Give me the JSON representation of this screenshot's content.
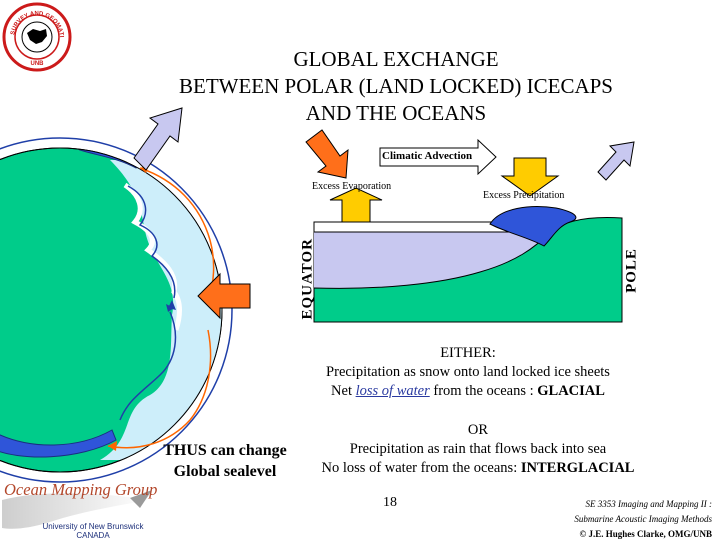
{
  "logo": {
    "ring_text": "SURVEY AND GEOMATICS ENGINEERING",
    "center_text": "UNB"
  },
  "title": {
    "line1": "GLOBAL EXCHANGE",
    "line2": "BETWEEN POLAR (LAND LOCKED) ICECAPS",
    "line3": "AND THE OCEANS"
  },
  "diagram": {
    "climatic_advection": "Climatic Advection",
    "excess_evaporation": "Excess Evaporation",
    "excess_precipitation": "Excess Precipitation",
    "equator": "EQUATOR",
    "pole": "POLE"
  },
  "either": {
    "heading": "EITHER:",
    "line1": "Precipitation as snow onto land locked ice sheets",
    "line2_prefix": "Net ",
    "line2_link": "loss of water",
    "line2_middle": " from the oceans : ",
    "line2_bold": "GLACIAL"
  },
  "or": {
    "heading": "OR",
    "line1": "Precipitation as rain that flows back into sea",
    "line2_prefix": "No loss of water from the oceans: ",
    "line2_bold": "INTERGLACIAL"
  },
  "thus": {
    "line1": "THUS can change",
    "line2": "Global sealevel"
  },
  "footer": {
    "page_number": "18",
    "credit_line1": "SE 3353 Imaging and Mapping II :",
    "credit_line2": "Submarine Acoustic Imaging Methods",
    "credit_line3": "© J.E. Hughes Clarke, OMG/UNB",
    "group_name": "Ocean Mapping Group",
    "university": "University of New Brunswick",
    "country": "CANADA"
  },
  "colors": {
    "land": "#00cc8a",
    "ocean": "#cdeefa",
    "ice": "#2f55d9",
    "arrow_light": "#c8c8f0",
    "arrow_orange": "#ff6f1a",
    "arrow_yellow": "#ffcc00",
    "flow_orange": "#ff6600",
    "flow_blue": "#1f3fa8"
  }
}
